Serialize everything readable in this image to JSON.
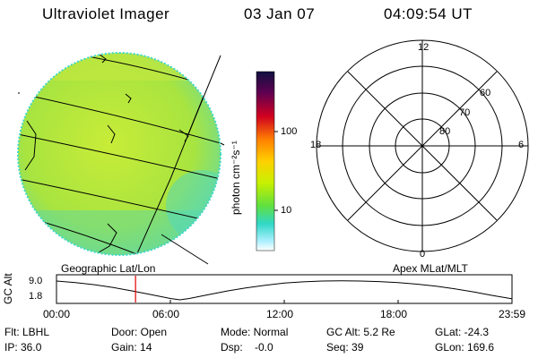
{
  "header": {
    "instrument": "Ultraviolet Imager",
    "date": "03 Jan 07",
    "time": "04:09:54 UT"
  },
  "colorbar": {
    "label": "photon cm⁻²s⁻¹",
    "ticks": [
      "100",
      "10"
    ],
    "colors": [
      "#101040",
      "#800040",
      "#d00020",
      "#ff8000",
      "#ffd000",
      "#c8f000",
      "#60e040",
      "#30d8c8",
      "#b0f0ff",
      "#ffffff"
    ]
  },
  "globe": {
    "title": "Geographic Lat/Lon",
    "fill_color": "#b4e83c",
    "edge_color": "#40d8c8"
  },
  "polar": {
    "title": "Apex MLat/MLT",
    "mlt_labels": {
      "top": "12",
      "left": "18",
      "right": "6",
      "bottom": "0"
    },
    "lat_labels": [
      "60",
      "70",
      "80"
    ]
  },
  "chart_data": {
    "type": "line",
    "ylabel": "GC Alt",
    "yticks": [
      "9.0",
      "1.8"
    ],
    "ylim": [
      1.8,
      9.0
    ],
    "xticks": [
      "00:00",
      "06:00",
      "12:00",
      "18:00",
      "23:59"
    ],
    "x_hours": [
      0,
      1,
      2,
      3,
      4,
      5,
      6,
      6.5,
      7,
      8,
      9,
      10,
      11,
      12,
      13,
      14,
      15,
      16,
      17,
      18,
      19,
      20,
      21,
      22,
      23,
      23.98
    ],
    "gc_alt": [
      9.0,
      8.4,
      7.6,
      6.5,
      5.2,
      3.8,
      2.3,
      1.8,
      2.3,
      3.8,
      5.2,
      6.4,
      7.4,
      8.2,
      8.7,
      9.0,
      9.1,
      9.0,
      8.8,
      8.4,
      7.8,
      7.0,
      6.0,
      4.8,
      3.4,
      2.2
    ],
    "current_hour": 4.165,
    "marker_color": "#e00000"
  },
  "status": {
    "flt": "Flt: LBHL",
    "ip": "IP: 36.0",
    "door": "Door: Open",
    "gain": "Gain: 14",
    "mode": "Mode: Normal",
    "dsp": "Dsp:    -0.0",
    "gcalt": "GC Alt: 5.2 Re",
    "seq": "Seq: 39",
    "glat": "GLat: -24.3",
    "glon": "GLon: 169.6"
  }
}
